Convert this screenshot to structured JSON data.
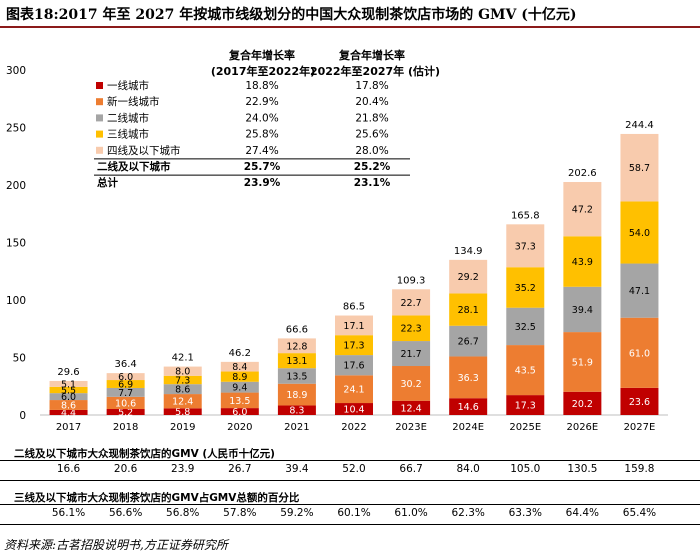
{
  "title": "图表18:2017 年至 2027 年按城市线级划分的中国大众现制茶饮店市场的 GMV (十亿元)",
  "chart_data": {
    "type": "bar",
    "stacked": true,
    "categories": [
      "2017",
      "2018",
      "2019",
      "2020",
      "2021",
      "2022",
      "2023E",
      "2024E",
      "2025E",
      "2026E",
      "2027E"
    ],
    "ylim": [
      0,
      300
    ],
    "yticks": [
      0,
      50,
      100,
      150,
      200,
      250,
      300
    ],
    "series": [
      {
        "name": "一线城市",
        "color": "#c00000",
        "values": [
          4.4,
          5.2,
          5.8,
          6.0,
          8.3,
          10.4,
          12.4,
          14.6,
          17.3,
          20.2,
          23.6
        ]
      },
      {
        "name": "新一线城市",
        "color": "#ed7d31",
        "values": [
          8.6,
          10.6,
          12.4,
          13.5,
          18.9,
          24.1,
          30.2,
          36.3,
          43.5,
          51.9,
          61.0
        ]
      },
      {
        "name": "二线城市",
        "color": "#a5a5a5",
        "values": [
          6.0,
          7.7,
          8.6,
          9.4,
          13.5,
          17.6,
          21.7,
          26.7,
          32.5,
          39.4,
          47.1
        ]
      },
      {
        "name": "三线城市",
        "color": "#ffc000",
        "values": [
          5.5,
          6.9,
          7.3,
          8.9,
          13.1,
          17.3,
          22.3,
          28.1,
          35.2,
          43.9,
          54.0
        ]
      },
      {
        "name": "四线及以下城市",
        "color": "#f8cbad",
        "values": [
          5.1,
          6.0,
          8.0,
          8.4,
          12.8,
          17.1,
          22.7,
          29.2,
          37.3,
          47.2,
          58.7
        ]
      }
    ],
    "totals": [
      "29.6",
      "36.4",
      "42.1",
      "46.2",
      "66.6",
      "86.5",
      "109.3",
      "134.9",
      "165.8",
      "202.6",
      "244.4"
    ],
    "labels": [
      [
        "4.4",
        "5.2",
        "5.8",
        "6.0",
        "8.3",
        "10.4",
        "12.4",
        "14.6",
        "17.3",
        "20.2",
        "23.6"
      ],
      [
        "8.6",
        "10.6",
        "12.4",
        "13.5",
        "18.9",
        "24.1",
        "30.2",
        "36.3",
        "43.5",
        "51.9",
        "61.0"
      ],
      [
        "6.0",
        "7.7",
        "8.6",
        "9.4",
        "13.5",
        "17.6",
        "21.7",
        "26.7",
        "32.5",
        "39.4",
        "47.1"
      ],
      [
        "5.5",
        "6.9",
        "7.3",
        "8.9",
        "13.1",
        "17.3",
        "22.3",
        "28.1",
        "35.2",
        "43.9",
        "54.0"
      ],
      [
        "5.1",
        "6.0",
        "8.0",
        "8.4",
        "12.8",
        "17.1",
        "22.7",
        "29.2",
        "37.3",
        "47.2",
        "58.7"
      ]
    ]
  },
  "cagr_table": {
    "header1": [
      "复合年增长率",
      "(2017年至2022年)"
    ],
    "header2": [
      "复合年增长率",
      "2022年至2027年 (估计)"
    ],
    "rows": [
      {
        "name": "一线城市",
        "color": "#c00000",
        "a": "18.8%",
        "b": "17.8%",
        "bold": false
      },
      {
        "name": "新一线城市",
        "color": "#ed7d31",
        "a": "22.9%",
        "b": "20.4%",
        "bold": false
      },
      {
        "name": "二线城市",
        "color": "#a5a5a5",
        "a": "24.0%",
        "b": "21.8%",
        "bold": false
      },
      {
        "name": "三线城市",
        "color": "#ffc000",
        "a": "25.8%",
        "b": "25.6%",
        "bold": false
      },
      {
        "name": "四线及以下城市",
        "color": "#f8cbad",
        "a": "27.4%",
        "b": "28.0%",
        "bold": false
      },
      {
        "name": "二线及以下城市",
        "color": "",
        "a": "25.7%",
        "b": "25.2%",
        "bold": true
      },
      {
        "name": "总计",
        "color": "",
        "a": "23.9%",
        "b": "23.1%",
        "bold": true
      }
    ]
  },
  "sub_tables": [
    {
      "title": "二线及以下城市大众现制茶饮店的GMV (人民币十亿元)",
      "values": [
        "16.6",
        "20.6",
        "23.9",
        "26.7",
        "39.4",
        "52.0",
        "66.7",
        "84.0",
        "105.0",
        "130.5",
        "159.8"
      ]
    },
    {
      "title": "三线及以下城市大众现制茶饮店的GMV占GMV总额的百分比",
      "values": [
        "56.1%",
        "56.6%",
        "56.8%",
        "57.8%",
        "59.2%",
        "60.1%",
        "61.0%",
        "62.3%",
        "63.3%",
        "64.4%",
        "65.4%"
      ]
    }
  ],
  "source": "资料来源:古茗招股说明书,方正证券研究所"
}
